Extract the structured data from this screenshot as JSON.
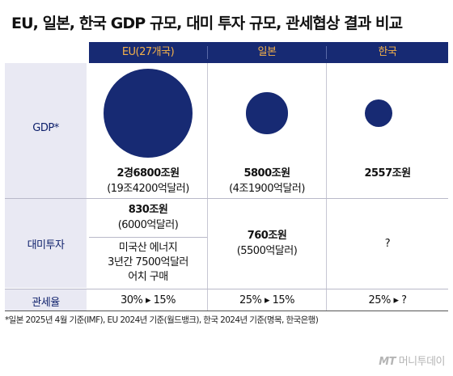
{
  "title": "EU, 일본, 한국 GDP 규모, 대미 투자 규모, 관세협상 결과 비교",
  "header": {
    "columns": [
      "EU(27개국)",
      "일본",
      "한국"
    ]
  },
  "rows": {
    "gdp_label": "GDP*",
    "invest_label": "대미투자",
    "tariff_label": "관세율"
  },
  "gdp": [
    {
      "line1": "2경6800조원",
      "line2": "(19조4200억달러)",
      "value_usd_trillion": 19.42
    },
    {
      "line1": "5800조원",
      "line2": "(4조1900억달러)",
      "value_usd_trillion": 4.19
    },
    {
      "line1": "2557조원",
      "line2": "",
      "value_usd_trillion": 1.84
    }
  ],
  "investment": {
    "eu_top_line1": "830조원",
    "eu_top_line2": "(6000억달러)",
    "eu_bottom_line1": "미국산 에너지",
    "eu_bottom_line2": "3년간 7500억달러",
    "eu_bottom_line3": "어치 구매",
    "japan_line1": "760조원",
    "japan_line2": "(5500억달러)",
    "korea": "?"
  },
  "tariff": [
    "30% ▸ 15%",
    "25% ▸ 15%",
    "25% ▸ ?"
  ],
  "footnote": "*일본 2025년 4월 기준(IMF), EU 2024년 기준(월드뱅크), 한국 2024년 기준(명목, 한국은행)",
  "watermark": {
    "logo": "MT",
    "name": "머니투데이"
  },
  "colors": {
    "navy": "#172a73",
    "accent": "#f4b14a",
    "label_bg": "#e9e9f3"
  }
}
